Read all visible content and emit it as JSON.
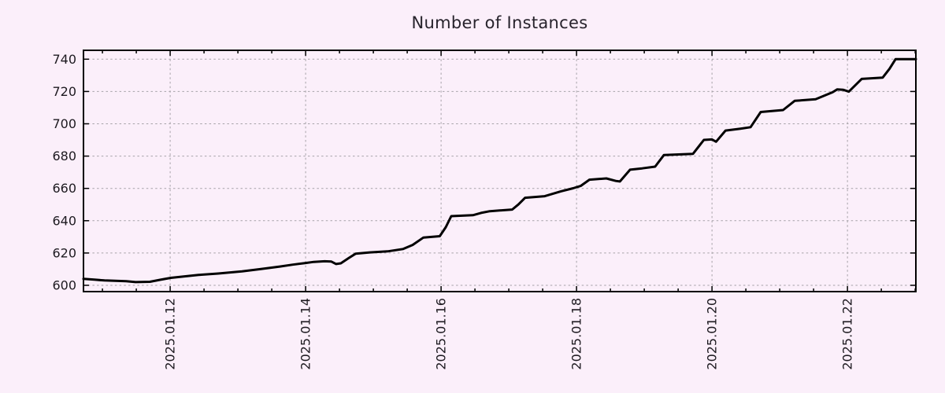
{
  "page": {
    "background_color": "#fbeffa"
  },
  "chart_data": {
    "type": "line",
    "title": "Number of Instances",
    "grid": {
      "show": true,
      "color": "#a6a2a8",
      "dash": "2.5 3.2"
    },
    "axis_color": "#000000",
    "x_axis": {
      "unit": "date (days of January 2025)",
      "range": [
        10.72,
        23.01
      ],
      "minor_tick_interval_days": 0.5,
      "tick_labels": [
        {
          "t": 12,
          "label": "2025.01.12"
        },
        {
          "t": 14,
          "label": "2025.01.14"
        },
        {
          "t": 16,
          "label": "2025.01.16"
        },
        {
          "t": 18,
          "label": "2025.01.18"
        },
        {
          "t": 20,
          "label": "2025.01.20"
        },
        {
          "t": 22,
          "label": "2025.01.22"
        }
      ]
    },
    "y_axis": {
      "range": [
        596.1,
        745.5
      ],
      "ticks": [
        600,
        620,
        640,
        660,
        680,
        700,
        720,
        740
      ]
    },
    "series": [
      {
        "name": "instances",
        "color": "#000000",
        "line_width": 3,
        "points": [
          [
            10.72,
            604
          ],
          [
            10.88,
            603.5
          ],
          [
            11.03,
            603
          ],
          [
            11.35,
            602.5
          ],
          [
            11.49,
            602
          ],
          [
            11.7,
            602.2
          ],
          [
            11.85,
            603.4
          ],
          [
            12.01,
            604.6
          ],
          [
            12.2,
            605.5
          ],
          [
            12.42,
            606.4
          ],
          [
            12.71,
            607.3
          ],
          [
            13.06,
            608.6
          ],
          [
            13.33,
            610
          ],
          [
            13.62,
            611.6
          ],
          [
            13.81,
            612.8
          ],
          [
            14.0,
            613.8
          ],
          [
            14.12,
            614.5
          ],
          [
            14.28,
            614.9
          ],
          [
            14.38,
            614.7
          ],
          [
            14.45,
            613.2
          ],
          [
            14.52,
            613.6
          ],
          [
            14.64,
            617
          ],
          [
            14.74,
            619.6
          ],
          [
            14.95,
            620.4
          ],
          [
            15.21,
            621
          ],
          [
            15.44,
            622.5
          ],
          [
            15.58,
            625
          ],
          [
            15.74,
            629.6
          ],
          [
            15.98,
            630.4
          ],
          [
            16.07,
            636
          ],
          [
            16.15,
            642.8
          ],
          [
            16.47,
            643.4
          ],
          [
            16.59,
            644.8
          ],
          [
            16.72,
            645.9
          ],
          [
            17.05,
            646.9
          ],
          [
            17.14,
            650
          ],
          [
            17.24,
            654.2
          ],
          [
            17.53,
            655.2
          ],
          [
            17.77,
            658.2
          ],
          [
            17.95,
            660.1
          ],
          [
            18.06,
            661.5
          ],
          [
            18.19,
            665.4
          ],
          [
            18.44,
            666.2
          ],
          [
            18.58,
            664.6
          ],
          [
            18.64,
            664.3
          ],
          [
            18.79,
            671.6
          ],
          [
            18.97,
            672.4
          ],
          [
            19.16,
            673.5
          ],
          [
            19.29,
            680.7
          ],
          [
            19.72,
            681.4
          ],
          [
            19.88,
            690
          ],
          [
            20.0,
            690.3
          ],
          [
            20.06,
            688.9
          ],
          [
            20.2,
            695.8
          ],
          [
            20.42,
            697
          ],
          [
            20.57,
            697.9
          ],
          [
            20.72,
            707.3
          ],
          [
            21.05,
            708.5
          ],
          [
            21.22,
            714.2
          ],
          [
            21.53,
            715.2
          ],
          [
            21.78,
            719.5
          ],
          [
            21.85,
            721.3
          ],
          [
            21.94,
            721
          ],
          [
            22.02,
            719.9
          ],
          [
            22.21,
            727.8
          ],
          [
            22.52,
            728.6
          ],
          [
            22.62,
            734
          ],
          [
            22.71,
            740
          ],
          [
            23.01,
            740
          ]
        ]
      }
    ]
  }
}
